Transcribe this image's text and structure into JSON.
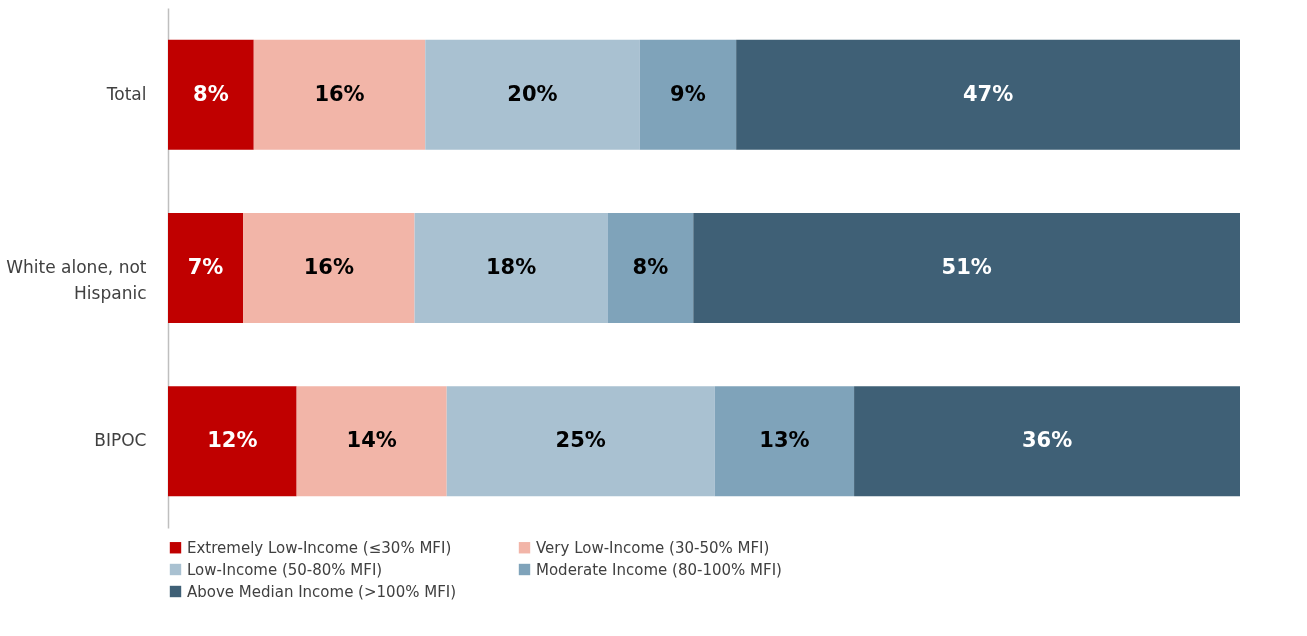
{
  "chart_data": {
    "type": "bar",
    "orientation": "horizontal",
    "stacked": true,
    "categories": [
      "Total",
      "White alone, not Hispanic",
      "BIPOC"
    ],
    "xlim": [
      0,
      100
    ],
    "tick_labels": "y",
    "grid": false,
    "legend": "bottom",
    "series": [
      {
        "name": "Extremely Low-Income (≤30% MFI)",
        "color": "#c00000",
        "values": [
          8,
          7,
          12
        ],
        "value_labels": [
          "8%",
          "7%",
          "12%"
        ]
      },
      {
        "name": "Very Low-Income (30-50% MFI)",
        "color": "#f2b5a8",
        "values": [
          16,
          16,
          14
        ],
        "value_labels": [
          "16%",
          "16%",
          "14%"
        ]
      },
      {
        "name": "Low-Income (50-80% MFI)",
        "color": "#a9c1d1",
        "values": [
          20,
          18,
          25
        ],
        "value_labels": [
          "20%",
          "18%",
          "25%"
        ]
      },
      {
        "name": "Moderate Income (80-100% MFI)",
        "color": "#7fa3ba",
        "values": [
          9,
          8,
          13
        ],
        "value_labels": [
          "9%",
          "8%",
          "13%"
        ]
      },
      {
        "name": "Above Median Income (>100% MFI)",
        "color": "#3f6076",
        "values": [
          47,
          51,
          36
        ],
        "value_labels": [
          "47%",
          "51%",
          "36%"
        ]
      }
    ]
  }
}
